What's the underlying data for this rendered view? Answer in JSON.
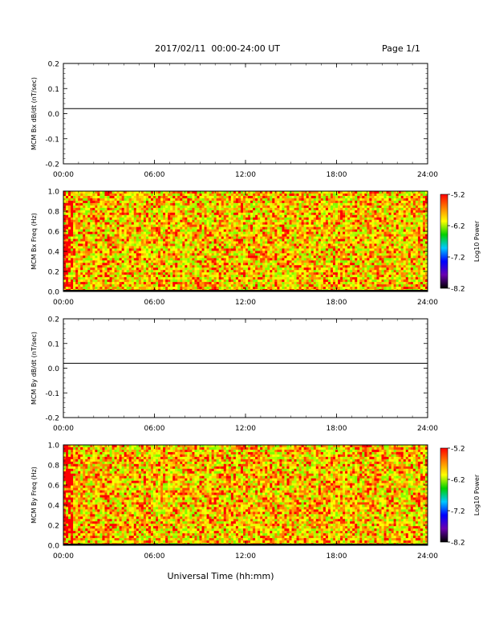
{
  "header": {
    "title": "2017/02/11  00:00-24:00 UT",
    "page": "Page 1/1"
  },
  "colors": {
    "axis": "#000000",
    "line": "#000000",
    "colormap": [
      "#000000",
      "#6a00b0",
      "#0000ff",
      "#00c8ff",
      "#00d000",
      "#ffff00",
      "#ff8000",
      "#ff0000"
    ]
  },
  "chart_data": [
    {
      "type": "line",
      "panel": "MCM Bx dB/dt",
      "ylabel": "MCM Bx dB/dt (nT/sec)",
      "x_ticks": [
        "00:00",
        "06:00",
        "12:00",
        "18:00",
        "24:00"
      ],
      "xlim": [
        0,
        24
      ],
      "ylim": [
        -0.2,
        0.2
      ],
      "y_ticks": [
        "0.2",
        "0.1",
        "0.0",
        "-0.1",
        "-0.2"
      ],
      "series": [
        {
          "x": [
            0,
            24
          ],
          "values": [
            0.02,
            0.02
          ]
        }
      ]
    },
    {
      "type": "heatmap",
      "panel": "MCM Bx Freq",
      "ylabel": "MCM Bx Freq (Hz)",
      "x_ticks": [
        "00:00",
        "06:00",
        "12:00",
        "18:00",
        "24:00"
      ],
      "xlim": [
        0,
        24
      ],
      "ylim": [
        0.0,
        1.0
      ],
      "y_ticks": [
        "1.0",
        "0.8",
        "0.6",
        "0.4",
        "0.2",
        "0.0"
      ],
      "colorbar": {
        "label": "Log10 Power",
        "ticks": [
          "-5.2",
          "-6.2",
          "-7.2",
          "-8.2"
        ],
        "range": [
          -8.2,
          -5.2
        ]
      },
      "typical_value_range": [
        -5.6,
        -5.2
      ]
    },
    {
      "type": "line",
      "panel": "MCM By dB/dt",
      "ylabel": "MCM By dB/dt (nT/sec)",
      "x_ticks": [
        "00:00",
        "06:00",
        "12:00",
        "18:00",
        "24:00"
      ],
      "xlim": [
        0,
        24
      ],
      "ylim": [
        -0.2,
        0.2
      ],
      "y_ticks": [
        "0.2",
        "0.1",
        "0.0",
        "-0.1",
        "-0.2"
      ],
      "series": [
        {
          "x": [
            0,
            24
          ],
          "values": [
            0.02,
            0.02
          ]
        }
      ]
    },
    {
      "type": "heatmap",
      "panel": "MCM By Freq",
      "ylabel": "MCM By Freq (Hz)",
      "x_ticks": [
        "00:00",
        "06:00",
        "12:00",
        "18:00",
        "24:00"
      ],
      "xlim": [
        0,
        24
      ],
      "ylim": [
        0.0,
        1.0
      ],
      "y_ticks": [
        "1.0",
        "0.8",
        "0.6",
        "0.4",
        "0.2",
        "0.0"
      ],
      "colorbar": {
        "label": "Log10 Power",
        "ticks": [
          "-5.2",
          "-6.2",
          "-7.2",
          "-8.2"
        ],
        "range": [
          -8.2,
          -5.2
        ]
      },
      "typical_value_range": [
        -5.6,
        -5.2
      ]
    }
  ],
  "xlabel": "Universal Time (hh:mm)"
}
